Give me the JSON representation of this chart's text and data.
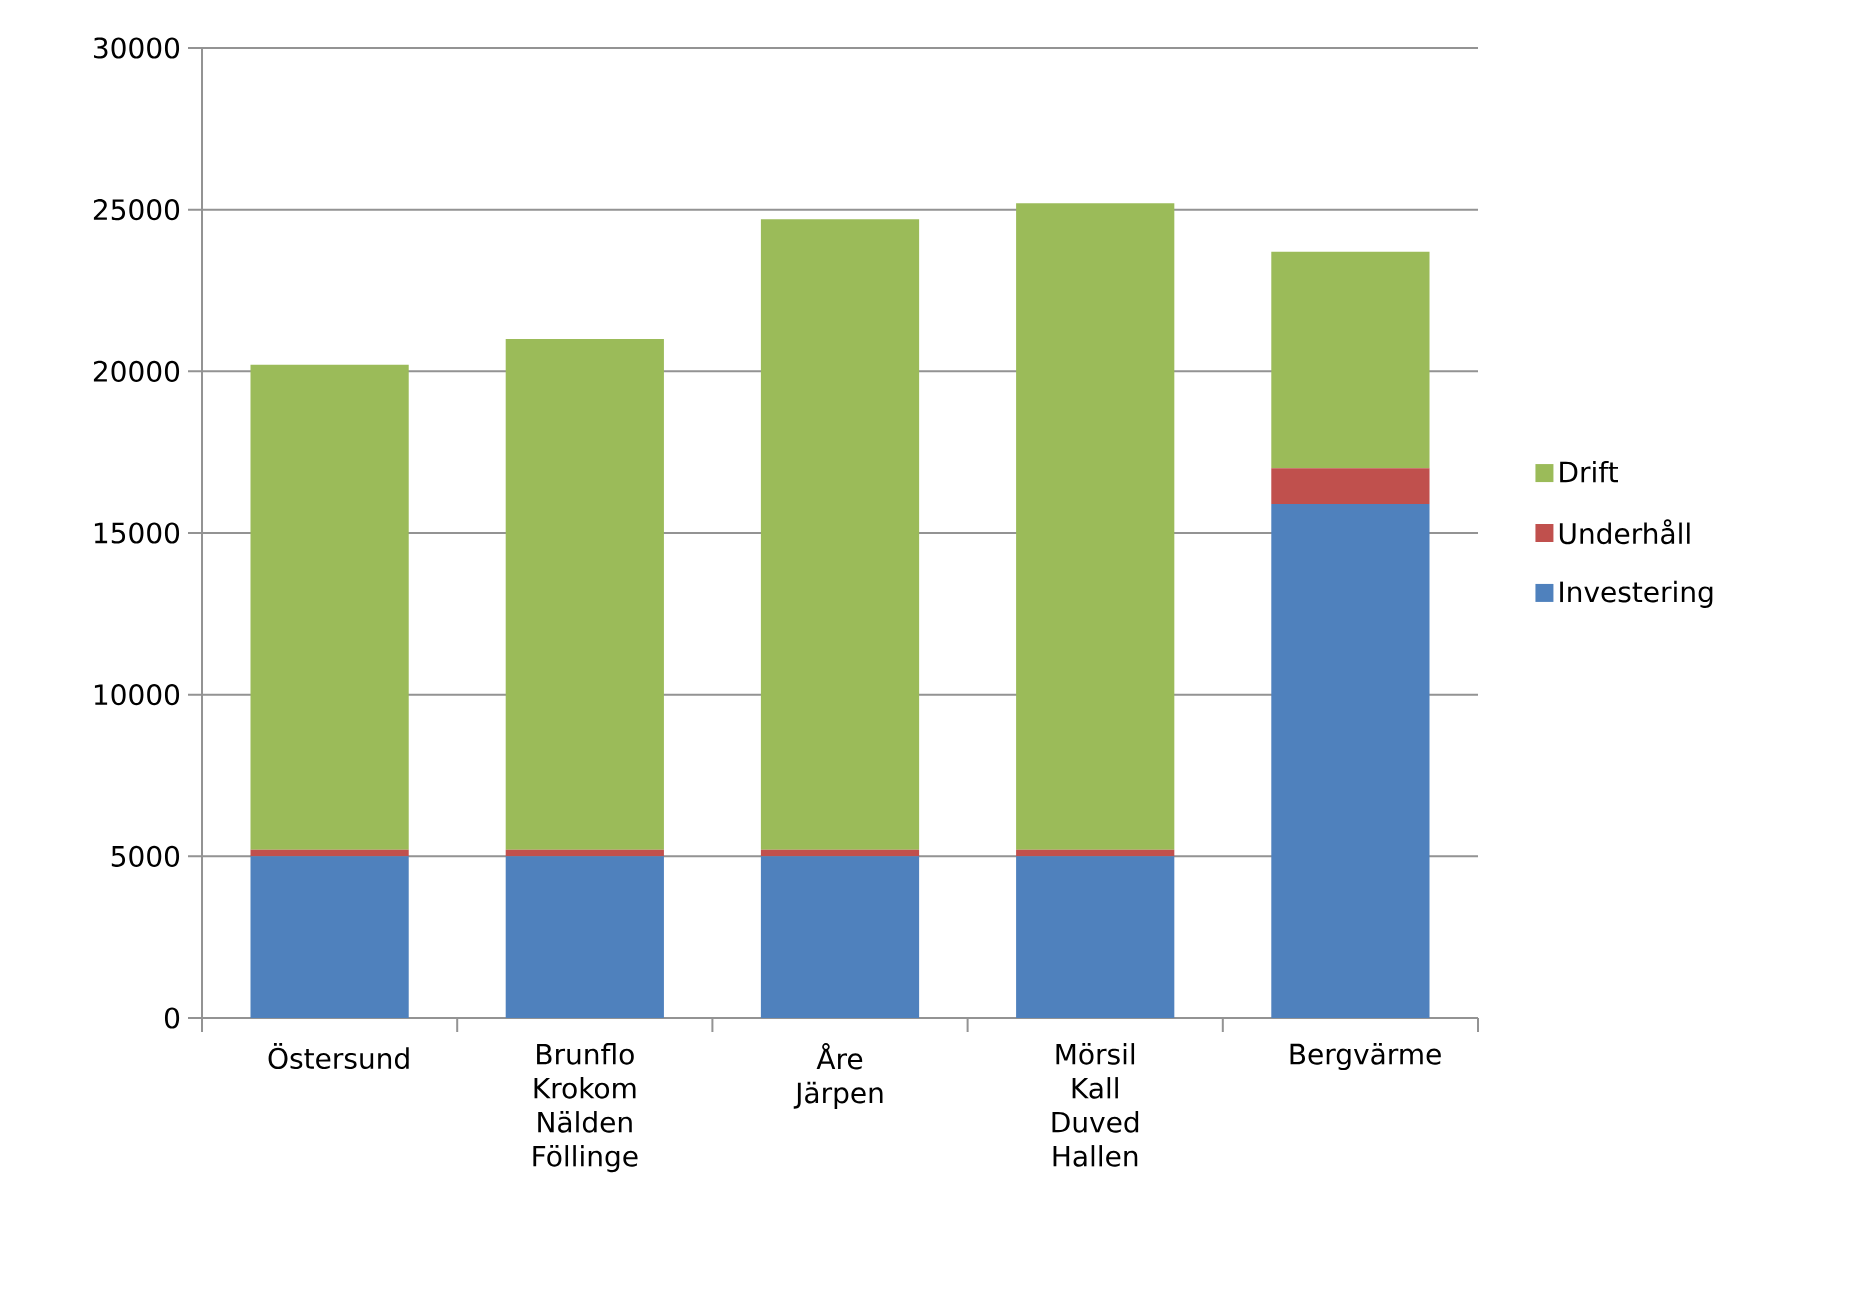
{
  "chart_data": {
    "type": "bar",
    "stacked": true,
    "categories": [
      "Östersund",
      "Brunflo Krokom Nälden Föllinge",
      "Åre Järpen",
      "Mörsil Kall Duved Hallen",
      "Bergvärme"
    ],
    "series": [
      {
        "name": "Investering",
        "color": "#4f81bd",
        "values": [
          5000,
          5000,
          5000,
          5000,
          15900
        ]
      },
      {
        "name": "Underhåll",
        "color": "#c0504d",
        "values": [
          200,
          200,
          200,
          200,
          1100
        ]
      },
      {
        "name": "Drift",
        "color": "#9bbb59",
        "values": [
          15000,
          15800,
          19500,
          20000,
          6700
        ]
      }
    ],
    "ylim": [
      0,
      30000
    ],
    "yticks": [
      0,
      5000,
      10000,
      15000,
      20000,
      25000,
      30000
    ],
    "grid": "y",
    "legend": "right"
  }
}
